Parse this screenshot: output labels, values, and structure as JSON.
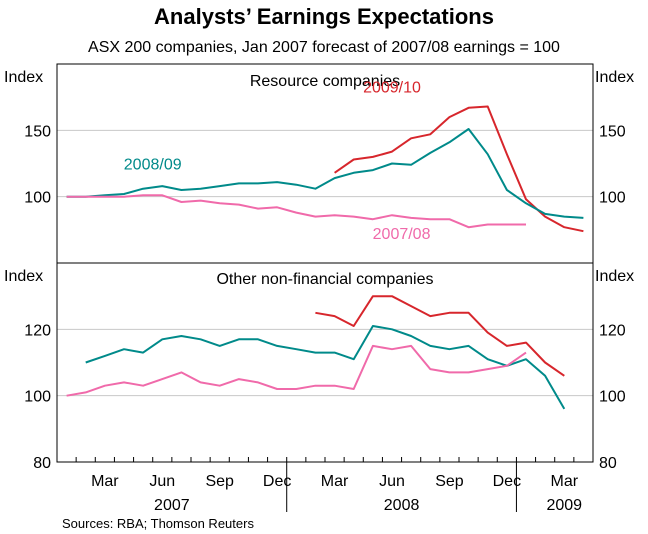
{
  "title": "Analysts’ Earnings Expectations",
  "subtitle": "ASX 200 companies, Jan 2007 forecast of 2007/08 earnings = 100",
  "source": "Sources: RBA; Thomson Reuters",
  "colors": {
    "fy2009": "#008A8A",
    "fy2010": "#D7262C",
    "fy2008": "#F06AAA",
    "grid": "#c8c8c8",
    "frame": "#000000"
  },
  "x_axis": {
    "start_month": 1,
    "end_month": 28,
    "month_ticks": [
      "Mar",
      "Jun",
      "Sep",
      "Dec",
      "Mar",
      "Jun",
      "Sep",
      "Dec",
      "Mar"
    ],
    "month_tick_positions": [
      3,
      6,
      9,
      12,
      15,
      18,
      21,
      24,
      27
    ],
    "years": [
      "2007",
      "2008",
      "2009"
    ],
    "year_positions": [
      6.5,
      18.5,
      27
    ],
    "year_boundaries": [
      12.5,
      24.5
    ]
  },
  "chart_data": [
    {
      "type": "line",
      "title": "Resource companies",
      "ylabel_left": "Index",
      "ylabel_right": "Index",
      "ylim": [
        50,
        200
      ],
      "yticks": [
        100,
        150
      ],
      "series": [
        {
          "name": "2009/10",
          "color": "#D7262C",
          "x": [
            15,
            16,
            17,
            18,
            19,
            20,
            21,
            22,
            23,
            24,
            25,
            26,
            27,
            28
          ],
          "values": [
            118,
            128,
            130,
            134,
            144,
            147,
            160,
            167,
            168,
            132,
            98,
            85,
            77,
            74
          ]
        },
        {
          "name": "2008/09",
          "color": "#008A8A",
          "x": [
            1,
            2,
            3,
            4,
            5,
            6,
            7,
            8,
            9,
            10,
            11,
            12,
            13,
            14,
            15,
            16,
            17,
            18,
            19,
            20,
            21,
            22,
            23,
            24,
            25,
            26,
            27,
            28
          ],
          "values": [
            100,
            100,
            101,
            102,
            106,
            108,
            105,
            106,
            108,
            110,
            110,
            111,
            109,
            106,
            114,
            118,
            120,
            125,
            124,
            133,
            141,
            151,
            132,
            105,
            95,
            87,
            85,
            84
          ]
        },
        {
          "name": "2007/08",
          "color": "#F06AAA",
          "x": [
            1,
            2,
            3,
            4,
            5,
            6,
            7,
            8,
            9,
            10,
            11,
            12,
            13,
            14,
            15,
            16,
            17,
            18,
            19,
            20,
            21,
            22,
            23,
            24,
            25
          ],
          "values": [
            100,
            100,
            100,
            100,
            101,
            101,
            96,
            97,
            95,
            94,
            91,
            92,
            88,
            85,
            86,
            85,
            83,
            86,
            84,
            83,
            83,
            77,
            79,
            79,
            79
          ]
        }
      ],
      "annotations": [
        {
          "text": "2009/10",
          "series": "2009/10"
        },
        {
          "text": "2008/09",
          "series": "2008/09"
        },
        {
          "text": "2007/08",
          "series": "2007/08"
        }
      ]
    },
    {
      "type": "line",
      "title": "Other non-financial companies",
      "ylabel_left": "Index",
      "ylabel_right": "Index",
      "ylim": [
        80,
        140
      ],
      "yticks": [
        80,
        100,
        120
      ],
      "series": [
        {
          "name": "2009/10",
          "color": "#D7262C",
          "x": [
            14,
            15,
            16,
            17,
            18,
            19,
            20,
            21,
            22,
            23,
            24,
            25,
            26,
            27,
            28
          ],
          "values": [
            125,
            124,
            121,
            130,
            130,
            127,
            124,
            125,
            125,
            119,
            115,
            116,
            110,
            106,
            null
          ]
        },
        {
          "name": "2008/09",
          "color": "#008A8A",
          "x": [
            2,
            3,
            4,
            5,
            6,
            7,
            8,
            9,
            10,
            11,
            12,
            13,
            14,
            15,
            16,
            17,
            18,
            19,
            20,
            21,
            22,
            23,
            24,
            25,
            26,
            27,
            28
          ],
          "values": [
            110,
            112,
            114,
            113,
            117,
            118,
            117,
            115,
            117,
            117,
            115,
            114,
            113,
            113,
            111,
            121,
            120,
            118,
            115,
            114,
            115,
            111,
            109,
            111,
            106,
            96,
            null
          ]
        },
        {
          "name": "2007/08",
          "color": "#F06AAA",
          "x": [
            1,
            2,
            3,
            4,
            5,
            6,
            7,
            8,
            9,
            10,
            11,
            12,
            13,
            14,
            15,
            16,
            17,
            18,
            19,
            20,
            21,
            22,
            23,
            24,
            25
          ],
          "values": [
            100,
            101,
            103,
            104,
            103,
            105,
            107,
            104,
            103,
            105,
            104,
            102,
            102,
            103,
            103,
            102,
            115,
            114,
            115,
            108,
            107,
            107,
            108,
            109,
            113
          ]
        }
      ]
    }
  ]
}
